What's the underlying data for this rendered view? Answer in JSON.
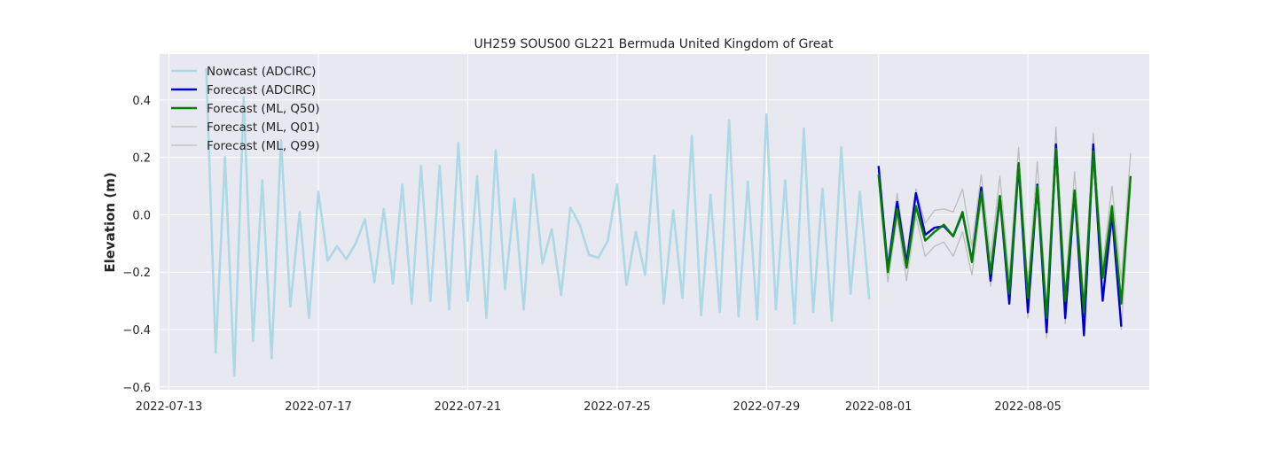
{
  "chart_data": {
    "type": "line",
    "title": "UH259 SOUS00 GL221 Bermuda United Kingdom of Great",
    "xlabel": "",
    "ylabel": "Elevation (m)",
    "xlim": [
      "2022-07-12T18:00",
      "2022-08-08T06:00"
    ],
    "ylim": [
      -0.61,
      0.56
    ],
    "x_ticks": [
      "2022-07-13",
      "2022-07-17",
      "2022-07-21",
      "2022-07-25",
      "2022-07-29",
      "2022-08-01",
      "2022-08-05"
    ],
    "y_ticks": [
      0.4,
      0.2,
      0.0,
      -0.2,
      -0.4,
      -0.6
    ],
    "y_tick_labels": [
      "0.4",
      "0.2",
      "0.0",
      "−0.2",
      "−0.4",
      "−0.6"
    ],
    "grid": true,
    "background": "#e8e8f0",
    "legend_position": "top-left",
    "series": [
      {
        "name": "Nowcast (ADCIRC)",
        "color": "#add8e6",
        "x": [
          "2022-07-14T00:00",
          "2022-07-14T06:00",
          "2022-07-14T12:00",
          "2022-07-14T18:00",
          "2022-07-15T00:00",
          "2022-07-15T06:00",
          "2022-07-15T12:00",
          "2022-07-15T18:00",
          "2022-07-16T00:00",
          "2022-07-16T06:00",
          "2022-07-16T12:00",
          "2022-07-16T18:00",
          "2022-07-17T00:00",
          "2022-07-17T06:00",
          "2022-07-17T12:00",
          "2022-07-17T18:00",
          "2022-07-18T00:00",
          "2022-07-18T06:00",
          "2022-07-18T12:00",
          "2022-07-18T18:00",
          "2022-07-19T00:00",
          "2022-07-19T06:00",
          "2022-07-19T12:00",
          "2022-07-19T18:00",
          "2022-07-20T00:00",
          "2022-07-20T06:00",
          "2022-07-20T12:00",
          "2022-07-20T18:00",
          "2022-07-21T00:00",
          "2022-07-21T06:00",
          "2022-07-21T12:00",
          "2022-07-21T18:00",
          "2022-07-22T00:00",
          "2022-07-22T06:00",
          "2022-07-22T12:00",
          "2022-07-22T18:00",
          "2022-07-23T00:00",
          "2022-07-23T06:00",
          "2022-07-23T12:00",
          "2022-07-23T18:00",
          "2022-07-24T00:00",
          "2022-07-24T06:00",
          "2022-07-24T12:00",
          "2022-07-24T18:00",
          "2022-07-25T00:00",
          "2022-07-25T06:00",
          "2022-07-25T12:00",
          "2022-07-25T18:00",
          "2022-07-26T00:00",
          "2022-07-26T06:00",
          "2022-07-26T12:00",
          "2022-07-26T18:00",
          "2022-07-27T00:00",
          "2022-07-27T06:00",
          "2022-07-27T12:00",
          "2022-07-27T18:00",
          "2022-07-28T00:00",
          "2022-07-28T06:00",
          "2022-07-28T12:00",
          "2022-07-28T18:00",
          "2022-07-29T00:00",
          "2022-07-29T06:00",
          "2022-07-29T12:00",
          "2022-07-29T18:00",
          "2022-07-30T00:00",
          "2022-07-30T06:00",
          "2022-07-30T12:00",
          "2022-07-30T18:00",
          "2022-07-31T00:00",
          "2022-07-31T06:00",
          "2022-07-31T12:00",
          "2022-07-31T18:00"
        ],
        "y": [
          0.51,
          -0.48,
          0.2,
          -0.56,
          0.41,
          -0.44,
          0.12,
          -0.5,
          0.26,
          -0.32,
          0.01,
          -0.36,
          0.08,
          -0.16,
          -0.11,
          -0.155,
          -0.1,
          -0.015,
          -0.235,
          0.02,
          -0.24,
          0.105,
          -0.31,
          0.17,
          -0.3,
          0.17,
          -0.33,
          0.25,
          -0.3,
          0.135,
          -0.36,
          0.225,
          -0.26,
          0.055,
          -0.33,
          0.14,
          -0.17,
          -0.05,
          -0.28,
          0.025,
          -0.035,
          -0.14,
          -0.15,
          -0.09,
          0.105,
          -0.245,
          -0.06,
          -0.21,
          0.205,
          -0.31,
          0.015,
          -0.29,
          0.275,
          -0.35,
          0.07,
          -0.34,
          0.33,
          -0.355,
          0.115,
          -0.365,
          0.35,
          -0.33,
          0.12,
          -0.38,
          0.3,
          -0.34,
          0.09,
          -0.37,
          0.235,
          -0.275,
          0.08,
          -0.295
        ]
      },
      {
        "name": "Forecast (ADCIRC)",
        "color": "#0000cd",
        "x": [
          "2022-08-01T00:00",
          "2022-08-01T06:00",
          "2022-08-01T12:00",
          "2022-08-01T18:00",
          "2022-08-02T00:00",
          "2022-08-02T06:00",
          "2022-08-02T12:00",
          "2022-08-02T18:00",
          "2022-08-03T00:00",
          "2022-08-03T06:00",
          "2022-08-03T12:00",
          "2022-08-03T18:00",
          "2022-08-04T00:00",
          "2022-08-04T06:00",
          "2022-08-04T12:00",
          "2022-08-04T18:00",
          "2022-08-05T00:00",
          "2022-08-05T06:00",
          "2022-08-05T12:00",
          "2022-08-05T18:00",
          "2022-08-06T00:00",
          "2022-08-06T06:00",
          "2022-08-06T12:00",
          "2022-08-06T18:00",
          "2022-08-07T00:00",
          "2022-08-07T06:00",
          "2022-08-07T12:00",
          "2022-08-07T18:00",
          "2022-08-08T00:00"
        ],
        "y": [
          0.17,
          -0.19,
          0.045,
          -0.17,
          0.075,
          -0.07,
          -0.045,
          -0.04,
          -0.075,
          0.005,
          -0.16,
          0.095,
          -0.23,
          0.065,
          -0.31,
          0.175,
          -0.34,
          0.105,
          -0.41,
          0.245,
          -0.36,
          0.085,
          -0.42,
          0.245,
          -0.3,
          0.005,
          -0.39,
          null,
          null
        ]
      },
      {
        "name": "Forecast (ML, Q50)",
        "color": "#008000",
        "x": [
          "2022-08-01T00:00",
          "2022-08-01T06:00",
          "2022-08-01T12:00",
          "2022-08-01T18:00",
          "2022-08-02T00:00",
          "2022-08-02T06:00",
          "2022-08-02T12:00",
          "2022-08-02T18:00",
          "2022-08-03T00:00",
          "2022-08-03T06:00",
          "2022-08-03T12:00",
          "2022-08-03T18:00",
          "2022-08-04T00:00",
          "2022-08-04T06:00",
          "2022-08-04T12:00",
          "2022-08-04T18:00",
          "2022-08-05T00:00",
          "2022-08-05T06:00",
          "2022-08-05T12:00",
          "2022-08-05T18:00",
          "2022-08-06T00:00",
          "2022-08-06T06:00",
          "2022-08-06T12:00",
          "2022-08-06T18:00",
          "2022-08-07T00:00",
          "2022-08-07T06:00",
          "2022-08-07T12:00",
          "2022-08-07T18:00",
          "2022-08-08T00:00"
        ],
        "y": [
          0.14,
          -0.2,
          0.02,
          -0.185,
          0.03,
          -0.09,
          -0.06,
          -0.035,
          -0.075,
          0.01,
          -0.165,
          0.08,
          -0.205,
          0.065,
          -0.275,
          0.18,
          -0.29,
          0.1,
          -0.36,
          0.23,
          -0.3,
          0.085,
          -0.34,
          0.22,
          -0.22,
          0.03,
          -0.31,
          0.135,
          null
        ]
      },
      {
        "name": "Forecast (ML, Q01)",
        "color": "#bdbdbd",
        "x": [
          "2022-08-01T00:00",
          "2022-08-01T06:00",
          "2022-08-01T12:00",
          "2022-08-01T18:00",
          "2022-08-02T00:00",
          "2022-08-02T06:00",
          "2022-08-02T12:00",
          "2022-08-02T18:00",
          "2022-08-03T00:00",
          "2022-08-03T06:00",
          "2022-08-03T12:00",
          "2022-08-03T18:00",
          "2022-08-04T00:00",
          "2022-08-04T06:00",
          "2022-08-04T12:00",
          "2022-08-04T18:00",
          "2022-08-05T00:00",
          "2022-08-05T06:00",
          "2022-08-05T12:00",
          "2022-08-05T18:00",
          "2022-08-06T00:00",
          "2022-08-06T06:00",
          "2022-08-06T12:00",
          "2022-08-06T18:00",
          "2022-08-07T00:00",
          "2022-08-07T06:00",
          "2022-08-07T12:00",
          "2022-08-07T18:00",
          "2022-08-08T00:00"
        ],
        "y": [
          0.12,
          -0.235,
          -0.01,
          -0.23,
          -0.005,
          -0.145,
          -0.11,
          -0.095,
          -0.145,
          -0.06,
          -0.21,
          0.05,
          -0.25,
          0.03,
          -0.3,
          0.13,
          -0.36,
          0.07,
          -0.43,
          0.18,
          -0.38,
          0.05,
          -0.41,
          0.17,
          -0.3,
          -0.03,
          -0.4,
          0.1,
          null
        ]
      },
      {
        "name": "Forecast (ML, Q99)",
        "color": "#bdbdbd",
        "x": [
          "2022-08-01T00:00",
          "2022-08-01T06:00",
          "2022-08-01T12:00",
          "2022-08-01T18:00",
          "2022-08-02T00:00",
          "2022-08-02T06:00",
          "2022-08-02T12:00",
          "2022-08-02T18:00",
          "2022-08-03T00:00",
          "2022-08-03T06:00",
          "2022-08-03T12:00",
          "2022-08-03T18:00",
          "2022-08-04T00:00",
          "2022-08-04T06:00",
          "2022-08-04T12:00",
          "2022-08-04T18:00",
          "2022-08-05T00:00",
          "2022-08-05T06:00",
          "2022-08-05T12:00",
          "2022-08-05T18:00",
          "2022-08-06T00:00",
          "2022-08-06T06:00",
          "2022-08-06T12:00",
          "2022-08-06T18:00",
          "2022-08-07T00:00",
          "2022-08-07T06:00",
          "2022-08-07T12:00",
          "2022-08-07T18:00",
          "2022-08-08T00:00"
        ],
        "y": [
          0.15,
          -0.16,
          0.075,
          -0.14,
          0.09,
          -0.03,
          0.015,
          0.02,
          0.01,
          0.09,
          -0.11,
          0.14,
          -0.15,
          0.135,
          -0.22,
          0.235,
          -0.24,
          0.185,
          -0.32,
          0.305,
          -0.26,
          0.15,
          -0.3,
          0.285,
          -0.18,
          0.1,
          -0.23,
          0.215,
          null
        ]
      }
    ]
  }
}
